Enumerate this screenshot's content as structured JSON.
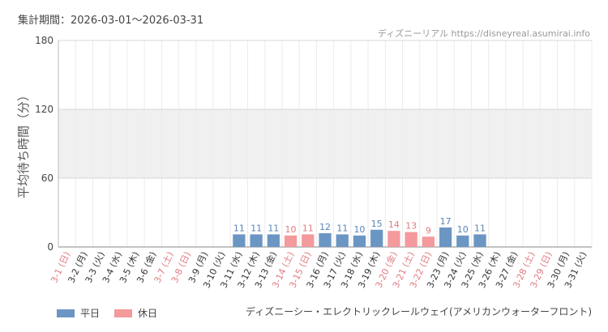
{
  "header": {
    "period": "集計期間：2026-03-01〜2026-03-31",
    "credit": "ディズニーリアル https://disneyreal.asumirai.info"
  },
  "legend": [
    {
      "label": "平日",
      "color": "#6b96c3"
    },
    {
      "label": "休日",
      "color": "#f4999c"
    }
  ],
  "attraction": "ディズニーシー・エレクトリックレールウェイ(アメリカンウォーターフロント)",
  "chart_data": {
    "type": "bar",
    "ylabel": "平均待ち時間（分）",
    "ylim": [
      0,
      180
    ],
    "yticks": [
      0,
      60,
      120,
      180
    ],
    "shaded_band": [
      60,
      120
    ],
    "categories": [
      "3-1 (日)",
      "3-2 (月)",
      "3-3 (火)",
      "3-4 (水)",
      "3-5 (木)",
      "3-6 (金)",
      "3-7 (土)",
      "3-8 (日)",
      "3-9 (月)",
      "3-10 (火)",
      "3-11 (水)",
      "3-12 (木)",
      "3-13 (金)",
      "3-14 (土)",
      "3-15 (日)",
      "3-16 (月)",
      "3-17 (火)",
      "3-18 (水)",
      "3-19 (木)",
      "3-20 (金)",
      "3-21 (土)",
      "3-22 (日)",
      "3-23 (月)",
      "3-24 (火)",
      "3-25 (水)",
      "3-26 (木)",
      "3-27 (金)",
      "3-28 (土)",
      "3-29 (日)",
      "3-30 (月)",
      "3-31 (火)"
    ],
    "holiday": [
      true,
      false,
      false,
      false,
      false,
      false,
      true,
      true,
      false,
      false,
      false,
      false,
      false,
      true,
      true,
      false,
      false,
      false,
      false,
      true,
      true,
      true,
      false,
      false,
      false,
      false,
      false,
      true,
      true,
      false,
      false
    ],
    "values": [
      null,
      null,
      null,
      null,
      null,
      null,
      null,
      null,
      null,
      null,
      11,
      11,
      11,
      10,
      11,
      12,
      11,
      10,
      15,
      14,
      13,
      9,
      17,
      10,
      11,
      null,
      null,
      null,
      null,
      null,
      null
    ],
    "colors": {
      "weekday": "#6b96c3",
      "holiday": "#f4999c",
      "weekday_label": "#5a85b5",
      "holiday_label": "#e07b80",
      "holiday_tick": "#e07b80",
      "weekday_tick": "#333333"
    }
  }
}
